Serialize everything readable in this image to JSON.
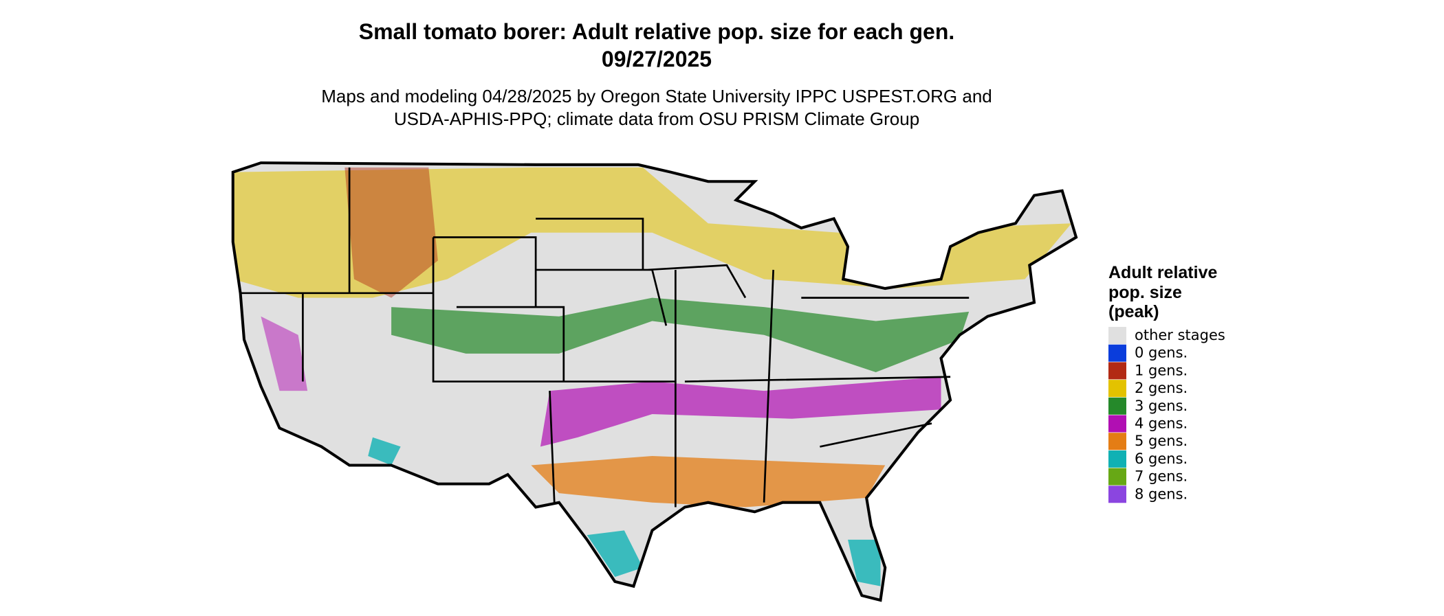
{
  "header": {
    "title": "Small tomato borer: Adult relative pop. size for each gen.",
    "date": "09/27/2025",
    "subtitle_lines": [
      "Maps and modeling 04/28/2025 by Oregon State University IPPC USPEST.ORG and",
      "USDA-APHIS-PPQ; climate data from OSU PRISM Climate Group"
    ]
  },
  "legend": {
    "title_lines": [
      "Adult relative",
      "pop. size",
      "(peak)"
    ],
    "items": [
      {
        "label": "other stages",
        "color": "#e0e0e0"
      },
      {
        "label": "0 gens.",
        "color": "#0a3ddc"
      },
      {
        "label": "1 gens.",
        "color": "#b22a14"
      },
      {
        "label": "2 gens.",
        "color": "#e3c200"
      },
      {
        "label": "3 gens.",
        "color": "#25892a"
      },
      {
        "label": "4 gens.",
        "color": "#b10fb3"
      },
      {
        "label": "5 gens.",
        "color": "#e47d15"
      },
      {
        "label": "6 gens.",
        "color": "#10b1b4"
      },
      {
        "label": "7 gens.",
        "color": "#67a815"
      },
      {
        "label": "8 gens.",
        "color": "#8b45e0"
      }
    ]
  }
}
